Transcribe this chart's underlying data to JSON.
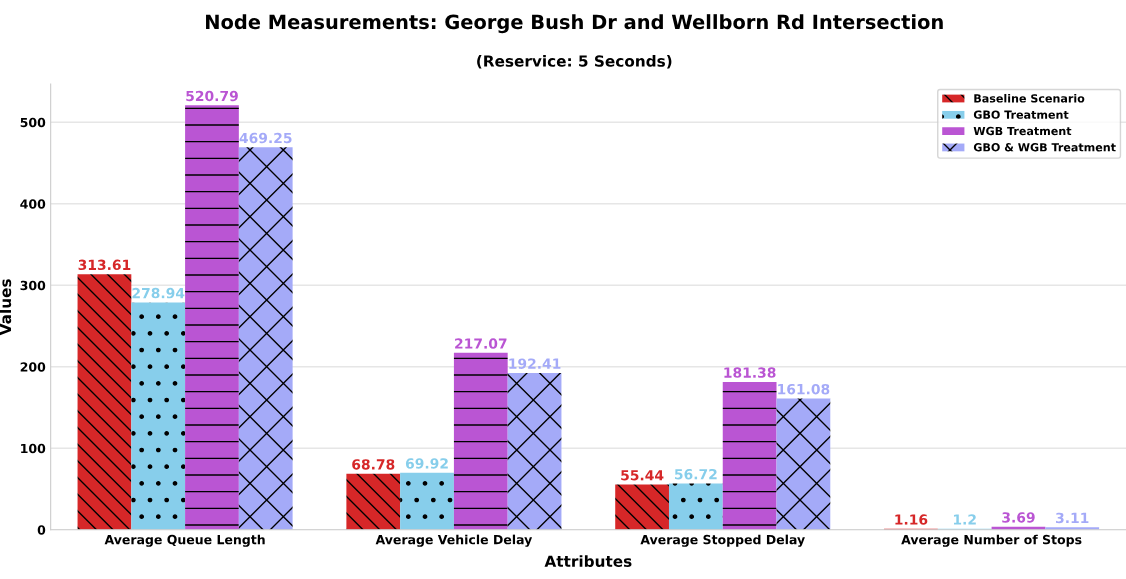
{
  "chart_data": {
    "type": "bar",
    "title": "Node Measurements: George Bush Dr and Wellborn Rd Intersection",
    "subtitle": "(Reservice: 5 Seconds)",
    "xlabel": "Attributes",
    "ylabel": "Values",
    "categories": [
      "Average Queue Length",
      "Average Vehicle Delay",
      "Average Stopped Delay",
      "Average Number of Stops"
    ],
    "series": [
      {
        "name": "Baseline Scenario",
        "color": "#d62728",
        "values": [
          313.61,
          68.78,
          55.44,
          1.16
        ]
      },
      {
        "name": "GBO Treatment",
        "color": "#87ceeb",
        "values": [
          278.94,
          69.92,
          56.72,
          1.2
        ]
      },
      {
        "name": "WGB Treatment",
        "color": "#ba55d3",
        "values": [
          520.79,
          217.07,
          181.38,
          3.69
        ]
      },
      {
        "name": "GBO & WGB Treatment",
        "color": "#a4aaf8",
        "values": [
          469.25,
          192.41,
          161.08,
          3.11
        ]
      }
    ],
    "ylim": [
      0,
      547
    ],
    "yticks": [
      0,
      100,
      200,
      300,
      400,
      500
    ],
    "grid": "y",
    "legend": "top right",
    "data_labels": true
  }
}
